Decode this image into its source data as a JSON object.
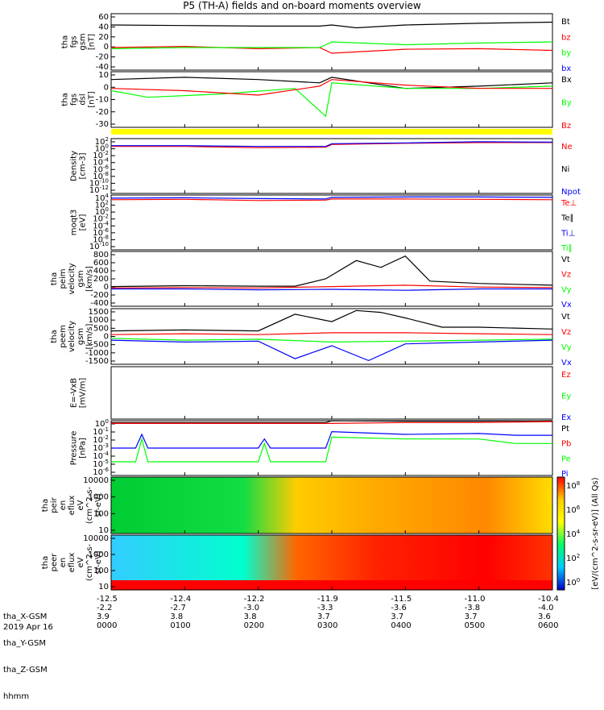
{
  "title": "P5 (TH-A) fields and on-board moments overview",
  "date": "2019 Apr 16",
  "ephemeris": {
    "row_labels": [
      "tha_X-GSM",
      "tha_Y-GSM",
      "tha_Z-GSM",
      "hhmm"
    ],
    "columns": [
      [
        "-12.5",
        "-2.2",
        "3.9",
        "0000"
      ],
      [
        "-12.4",
        "-2.7",
        "3.8",
        "0100"
      ],
      [
        "-12.2",
        "-3.0",
        "3.8",
        "0200"
      ],
      [
        "-11.9",
        "-3.3",
        "3.7",
        "0300"
      ],
      [
        "-11.5",
        "-3.6",
        "3.7",
        "0400"
      ],
      [
        "-11.0",
        "-3.8",
        "3.7",
        "0500"
      ],
      [
        "-10.4",
        "-4.0",
        "3.6",
        "0600"
      ]
    ]
  },
  "colorbar_label": "[eV/(cm^2-s-sr-eV)] (All Qs)",
  "colorbar_ticks": [
    "10^8",
    "10^6",
    "10^4",
    "10^2",
    "10^0"
  ],
  "colors": {
    "black": "#000000",
    "red": "#ff0000",
    "green": "#00ff00",
    "blue": "#0000ff",
    "yellow": "#ffff00"
  },
  "chart_data": [
    {
      "type": "line",
      "ylabel": [
        "tha",
        "fgs",
        "gsm",
        "[nT]"
      ],
      "yticks": [
        "60",
        "40",
        "20",
        "0",
        "-20",
        "-40"
      ],
      "ylim": [
        -40,
        60
      ],
      "legend": [
        {
          "label": "Bt",
          "color": "#000000"
        },
        {
          "label": "bz",
          "color": "#ff0000"
        },
        {
          "label": "by",
          "color": "#00ff00"
        },
        {
          "label": "bx",
          "color": "#0000ff"
        }
      ],
      "series": [
        {
          "name": "Bt",
          "color": "#000000",
          "x": [
            0,
            60,
            120,
            170,
            180,
            200,
            240,
            300,
            360
          ],
          "values": [
            40,
            39,
            38,
            38,
            40,
            35,
            40,
            43,
            45
          ]
        },
        {
          "name": "bz",
          "color": "#ff0000",
          "x": [
            0,
            60,
            120,
            170,
            180,
            240,
            300,
            360
          ],
          "values": [
            0,
            2,
            -2,
            0,
            -10,
            -3,
            -2,
            -5
          ]
        },
        {
          "name": "by",
          "color": "#00ff00",
          "x": [
            0,
            60,
            120,
            170,
            180,
            240,
            300,
            360
          ],
          "values": [
            -2,
            0,
            0,
            0,
            10,
            5,
            8,
            10
          ]
        }
      ]
    },
    {
      "type": "line",
      "ylabel": [
        "tha",
        "fgs",
        "dsl",
        "[nT]"
      ],
      "yticks": [
        "10",
        "0",
        "-10",
        "-20",
        "-30"
      ],
      "ylim": [
        -35,
        15
      ],
      "legend": [
        {
          "label": "Bx",
          "color": "#000000"
        },
        {
          "label": "By",
          "color": "#00ff00"
        },
        {
          "label": "Bz",
          "color": "#ff0000"
        }
      ],
      "series": [
        {
          "name": "Bx",
          "color": "#000000",
          "x": [
            0,
            60,
            120,
            170,
            180,
            240,
            300,
            360
          ],
          "values": [
            8,
            10,
            8,
            5,
            10,
            0,
            2,
            5
          ]
        },
        {
          "name": "By",
          "color": "#00ff00",
          "x": [
            0,
            30,
            90,
            150,
            175,
            180,
            240,
            300,
            360
          ],
          "values": [
            -2,
            -8,
            -5,
            0,
            -25,
            5,
            0,
            0,
            2
          ]
        },
        {
          "name": "Bz",
          "color": "#ff0000",
          "x": [
            0,
            60,
            120,
            170,
            180,
            240,
            300,
            360
          ],
          "values": [
            0,
            -2,
            -6,
            2,
            8,
            3,
            0,
            0
          ]
        }
      ]
    },
    {
      "type": "line",
      "ylabel": [
        "Density",
        "[cm-3]"
      ],
      "yticks": [
        "10^2",
        "10^0",
        "10^-2",
        "10^-4",
        "10^-6",
        "10^-8",
        "10^-10",
        "10^-12"
      ],
      "ylim": [
        -12,
        2
      ],
      "legend": [
        {
          "label": "Ne",
          "color": "#ff0000"
        },
        {
          "label": "Ni",
          "color": "#000000"
        },
        {
          "label": "Npot",
          "color": "#0000ff"
        }
      ],
      "series": [
        {
          "name": "Ne",
          "color": "#ff0000",
          "x": [
            0,
            60,
            120,
            175,
            180,
            240,
            300,
            360
          ],
          "values": [
            0,
            0,
            -0.3,
            -0.2,
            0.5,
            0.8,
            1,
            1
          ]
        },
        {
          "name": "Npot",
          "color": "#0000ff",
          "x": [
            0,
            60,
            120,
            175,
            180,
            240,
            300,
            360
          ],
          "values": [
            0.2,
            0.2,
            0,
            0,
            0.7,
            0.9,
            1.2,
            1.1
          ]
        }
      ]
    },
    {
      "type": "line",
      "ylabel": [
        "moqt3",
        "[eV]"
      ],
      "yticks": [
        "10^4",
        "10^2",
        "10^0",
        "10^-2",
        "10^-4",
        "10^-6",
        "10^-8",
        "10^-10"
      ],
      "ylim": [
        -10,
        4
      ],
      "legend": [
        {
          "label": "Te⊥",
          "color": "#ff0000"
        },
        {
          "label": "Te∥",
          "color": "#000000"
        },
        {
          "label": "Ti⊥",
          "color": "#0000ff"
        },
        {
          "label": "Ti∥",
          "color": "#00ff00"
        }
      ],
      "series": [
        {
          "name": "Ti⊥",
          "color": "#0000ff",
          "x": [
            0,
            60,
            120,
            175,
            180,
            240,
            300,
            360
          ],
          "values": [
            3.2,
            3.3,
            3.1,
            3,
            3.4,
            3.5,
            3.5,
            3.4
          ]
        },
        {
          "name": "Te⊥",
          "color": "#ff0000",
          "x": [
            0,
            60,
            120,
            175,
            180,
            240,
            300,
            360
          ],
          "values": [
            2.8,
            2.9,
            2.6,
            2.7,
            3,
            3,
            2.9,
            2.8
          ]
        }
      ]
    },
    {
      "type": "line",
      "ylabel": [
        "tha",
        "peim",
        "velocity",
        "gsm",
        "[km/s]"
      ],
      "yticks": [
        "800",
        "600",
        "400",
        "200",
        "0",
        "-200",
        "-400"
      ],
      "ylim": [
        -400,
        800
      ],
      "legend": [
        {
          "label": "Vt",
          "color": "#000000"
        },
        {
          "label": "Vz",
          "color": "#ff0000"
        },
        {
          "label": "Vy",
          "color": "#00ff00"
        },
        {
          "label": "Vx",
          "color": "#0000ff"
        }
      ],
      "series": [
        {
          "name": "Vt",
          "color": "#000000",
          "x": [
            0,
            60,
            120,
            150,
            175,
            200,
            220,
            240,
            260,
            300,
            360
          ],
          "values": [
            30,
            50,
            40,
            40,
            200,
            600,
            450,
            700,
            150,
            100,
            60
          ]
        },
        {
          "name": "Vz",
          "color": "#ff0000",
          "x": [
            0,
            60,
            120,
            180,
            240,
            300,
            360
          ],
          "values": [
            0,
            10,
            0,
            30,
            60,
            20,
            10
          ]
        },
        {
          "name": "Vx",
          "color": "#0000ff",
          "x": [
            0,
            60,
            120,
            180,
            240,
            300,
            360
          ],
          "values": [
            -20,
            -20,
            -40,
            -30,
            -50,
            -20,
            -20
          ]
        }
      ]
    },
    {
      "type": "line",
      "ylabel": [
        "tha",
        "peem",
        "velocity",
        "gsm",
        "[km/s]"
      ],
      "yticks": [
        "1500",
        "1000",
        "500",
        "0",
        "-500",
        "-1000",
        "-1500"
      ],
      "ylim": [
        -1500,
        1500
      ],
      "legend": [
        {
          "label": "Vt",
          "color": "#000000"
        },
        {
          "label": "Vz",
          "color": "#ff0000"
        },
        {
          "label": "Vy",
          "color": "#00ff00"
        },
        {
          "label": "Vx",
          "color": "#0000ff"
        }
      ],
      "series": [
        {
          "name": "Vt",
          "color": "#000000",
          "x": [
            0,
            60,
            120,
            150,
            180,
            200,
            220,
            240,
            270,
            300,
            360
          ],
          "values": [
            300,
            350,
            300,
            1200,
            800,
            1400,
            1300,
            1000,
            500,
            500,
            400
          ]
        },
        {
          "name": "Vz",
          "color": "#ff0000",
          "x": [
            0,
            60,
            120,
            180,
            240,
            300,
            360
          ],
          "values": [
            100,
            150,
            100,
            200,
            200,
            150,
            100
          ]
        },
        {
          "name": "Vy",
          "color": "#00ff00",
          "x": [
            0,
            60,
            120,
            180,
            240,
            300,
            360
          ],
          "values": [
            -100,
            -200,
            -150,
            -300,
            -250,
            -200,
            -150
          ]
        },
        {
          "name": "Vx",
          "color": "#0000ff",
          "x": [
            0,
            60,
            120,
            150,
            180,
            210,
            240,
            300,
            360
          ],
          "values": [
            -200,
            -300,
            -250,
            -1200,
            -500,
            -1300,
            -400,
            -300,
            -200
          ]
        }
      ]
    },
    {
      "type": "line",
      "ylabel": [
        "E=-VxB",
        "[mV/m]"
      ],
      "yticks": [],
      "ylim": [
        -1,
        1
      ],
      "legend": [
        {
          "label": "Ez",
          "color": "#ff0000"
        },
        {
          "label": "Ey",
          "color": "#00ff00"
        },
        {
          "label": "Ex",
          "color": "#0000ff"
        }
      ],
      "series": []
    },
    {
      "type": "line",
      "ylabel": [
        "Pressure",
        "[nPa]"
      ],
      "yticks": [
        "10^0",
        "10^-1",
        "10^-2",
        "10^-3",
        "10^-4",
        "10^-5",
        "10^-6"
      ],
      "ylim": [
        -6,
        0
      ],
      "legend": [
        {
          "label": "Pt",
          "color": "#000000"
        },
        {
          "label": "Pb",
          "color": "#ff0000"
        },
        {
          "label": "Pe",
          "color": "#00ff00"
        },
        {
          "label": "Pi",
          "color": "#0000ff"
        }
      ],
      "series": [
        {
          "name": "Pt",
          "color": "#000000",
          "x": [
            0,
            60,
            120,
            175,
            180,
            240,
            300,
            360
          ],
          "values": [
            -0.2,
            -0.2,
            -0.2,
            -0.2,
            0,
            -0.05,
            -0.05,
            0
          ]
        },
        {
          "name": "Pb",
          "color": "#ff0000",
          "x": [
            0,
            60,
            120,
            175,
            180,
            240,
            300,
            360
          ],
          "values": [
            -0.3,
            -0.3,
            -0.3,
            -0.3,
            -0.3,
            -0.2,
            -0.2,
            -0.1
          ]
        },
        {
          "name": "Pi",
          "color": "#0000ff",
          "x": [
            0,
            20,
            25,
            30,
            60,
            120,
            125,
            130,
            170,
            175,
            180,
            240,
            300,
            330,
            360
          ],
          "values": [
            -3,
            -3,
            -1.5,
            -3,
            -3,
            -3,
            -2,
            -3,
            -3,
            -3,
            -1.2,
            -1.5,
            -1.4,
            -1.6,
            -1.6
          ]
        },
        {
          "name": "Pe",
          "color": "#00ff00",
          "x": [
            0,
            20,
            25,
            30,
            60,
            120,
            125,
            130,
            170,
            175,
            180,
            240,
            300,
            330,
            360
          ],
          "values": [
            -4.5,
            -4.5,
            -2,
            -4.5,
            -4.5,
            -4.5,
            -2.5,
            -4.5,
            -4.5,
            -4.5,
            -1.8,
            -2,
            -2,
            -2.5,
            -2.5
          ]
        }
      ]
    },
    {
      "type": "heatmap",
      "ylabel": [
        "tha",
        "peir",
        "en",
        "eflux",
        "eV",
        "(cm^2-s-",
        "sr-eV)"
      ],
      "yticks": [
        "10000",
        "1000",
        "100",
        "10"
      ]
    },
    {
      "type": "heatmap",
      "ylabel": [
        "tha",
        "peer",
        "en",
        "eflux",
        "eV",
        "(cm^2-s-",
        "sr-eV)"
      ],
      "yticks": [
        "10000",
        "1000",
        "100",
        "10"
      ]
    }
  ]
}
